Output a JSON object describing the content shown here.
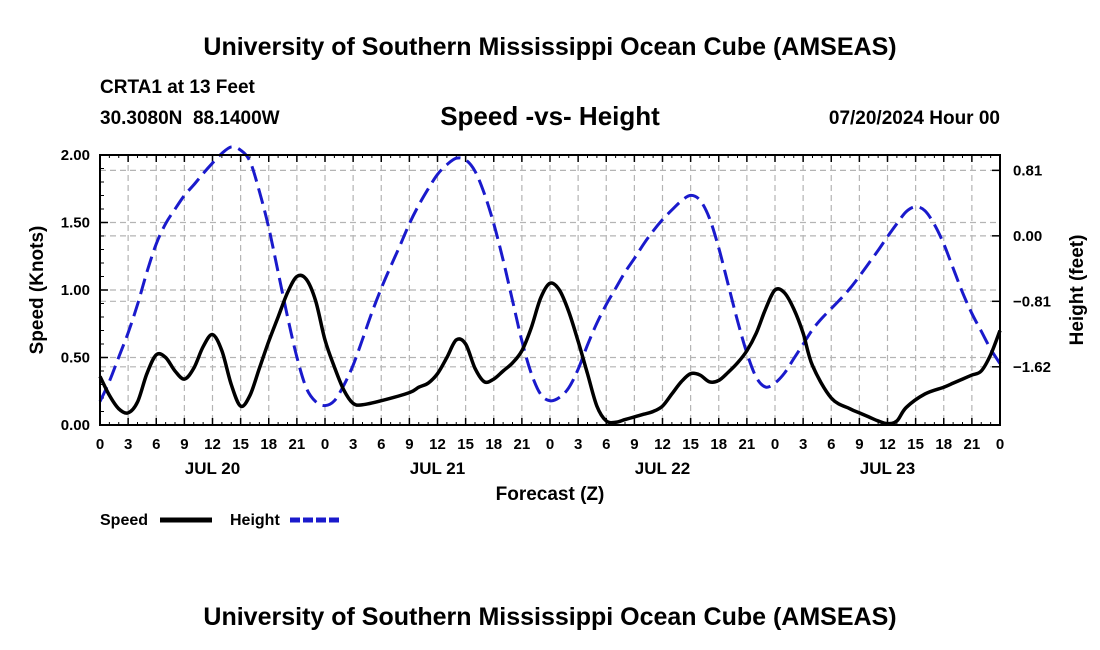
{
  "header": {
    "title": "University of Southern Mississippi Ocean Cube (AMSEAS)",
    "station": "CRTA1 at 13 Feet",
    "coords": "30.3080N  88.1400W",
    "datetime": "07/20/2024 Hour 00"
  },
  "footer": {
    "title": "University of Southern Mississippi Ocean Cube (AMSEAS)"
  },
  "colors": {
    "speed": "#000000",
    "height": "#1a1acc",
    "grid": "#b4b4b4"
  },
  "chart_data": {
    "type": "line",
    "title": "Speed -vs- Height",
    "xlabel": "Forecast (Z)",
    "ylabel": "Speed (Knots)",
    "y2label": "Height (feet)",
    "xlim": [
      0,
      96
    ],
    "ylim": [
      0,
      2.0
    ],
    "y2lim": [
      -2.34,
      1.0
    ],
    "x_ticks": [
      0,
      3,
      6,
      9,
      12,
      15,
      18,
      21,
      24,
      27,
      30,
      33,
      36,
      39,
      42,
      45,
      48,
      51,
      54,
      57,
      60,
      63,
      66,
      69,
      72,
      75,
      78,
      81,
      84,
      87,
      90,
      93,
      96
    ],
    "x_tick_labels": [
      "0",
      "3",
      "6",
      "9",
      "12",
      "15",
      "18",
      "21",
      "0",
      "3",
      "6",
      "9",
      "12",
      "15",
      "18",
      "21",
      "0",
      "3",
      "6",
      "9",
      "12",
      "15",
      "18",
      "21",
      "0",
      "3",
      "6",
      "9",
      "12",
      "15",
      "18",
      "21",
      "0"
    ],
    "y_ticks": [
      0,
      0.5,
      1.0,
      1.5,
      2.0
    ],
    "y_tick_labels": [
      "0.00",
      "0.50",
      "1.00",
      "1.50",
      "2.00"
    ],
    "y2_ticks": [
      0.81,
      0.0,
      -0.81,
      -1.62
    ],
    "y2_tick_labels": [
      "0.81",
      "0.00",
      "−0.81",
      "−1.62"
    ],
    "date_labels": [
      {
        "x": 12,
        "text": "JUL 20"
      },
      {
        "x": 36,
        "text": "JUL 21"
      },
      {
        "x": 60,
        "text": "JUL 22"
      },
      {
        "x": 84,
        "text": "JUL 23"
      }
    ],
    "grid": true,
    "legend": [
      {
        "name": "Speed",
        "style": "solid"
      },
      {
        "name": "Height",
        "style": "dashed"
      }
    ],
    "series": [
      {
        "name": "Speed",
        "axis": "left",
        "x": [
          0,
          1,
          2,
          3,
          4,
          5,
          6,
          7,
          8,
          9,
          10,
          11,
          12,
          13,
          14,
          15,
          16,
          17,
          18,
          19,
          20,
          21,
          22,
          23,
          24,
          25,
          26,
          27,
          28,
          30,
          33,
          34,
          35,
          36,
          37,
          38,
          39,
          40,
          41,
          42,
          43,
          44,
          45,
          46,
          47,
          48,
          49,
          50,
          51,
          52,
          53,
          54,
          55,
          56,
          57,
          58,
          59,
          60,
          61,
          62,
          63,
          64,
          65,
          66,
          67,
          68,
          69,
          70,
          71,
          72,
          73,
          74,
          75,
          76,
          78,
          80,
          81,
          82,
          83,
          84,
          85,
          86,
          88,
          90,
          91,
          92,
          93,
          94,
          95,
          96
        ],
        "values": [
          0.36,
          0.22,
          0.12,
          0.09,
          0.17,
          0.38,
          0.52,
          0.5,
          0.4,
          0.34,
          0.42,
          0.58,
          0.67,
          0.55,
          0.3,
          0.14,
          0.22,
          0.42,
          0.62,
          0.8,
          0.98,
          1.1,
          1.08,
          0.92,
          0.63,
          0.43,
          0.26,
          0.16,
          0.15,
          0.18,
          0.24,
          0.28,
          0.31,
          0.38,
          0.5,
          0.63,
          0.6,
          0.42,
          0.32,
          0.34,
          0.4,
          0.46,
          0.55,
          0.72,
          0.94,
          1.05,
          1.0,
          0.84,
          0.62,
          0.38,
          0.14,
          0.03,
          0.02,
          0.04,
          0.06,
          0.08,
          0.1,
          0.14,
          0.23,
          0.32,
          0.38,
          0.37,
          0.32,
          0.33,
          0.39,
          0.46,
          0.55,
          0.68,
          0.86,
          1.0,
          0.98,
          0.86,
          0.68,
          0.44,
          0.2,
          0.12,
          0.09,
          0.06,
          0.03,
          0.01,
          0.03,
          0.13,
          0.23,
          0.28,
          0.31,
          0.34,
          0.37,
          0.4,
          0.52,
          0.7
        ]
      },
      {
        "name": "Height",
        "axis": "right",
        "x": [
          0,
          1,
          2,
          3,
          4,
          5,
          6,
          7,
          8,
          9,
          10,
          11,
          12,
          13,
          14,
          15,
          16,
          17,
          18,
          19,
          20,
          21,
          22,
          23,
          24,
          25,
          26,
          27,
          28,
          29,
          30,
          31,
          32,
          33,
          34,
          35,
          36,
          37,
          38,
          39,
          40,
          41,
          42,
          43,
          44,
          45,
          46,
          47,
          48,
          49,
          50,
          51,
          52,
          53,
          54,
          55,
          56,
          57,
          58,
          59,
          60,
          61,
          62,
          63,
          64,
          65,
          66,
          67,
          68,
          69,
          70,
          71,
          72,
          73,
          74,
          75,
          76,
          77,
          78,
          79,
          80,
          81,
          82,
          83,
          84,
          85,
          86,
          87,
          88,
          89,
          90,
          91,
          92,
          93,
          94,
          95,
          96
        ],
        "values": [
          -2.05,
          -1.8,
          -1.5,
          -1.2,
          -0.85,
          -0.45,
          -0.1,
          0.15,
          0.33,
          0.5,
          0.63,
          0.77,
          0.9,
          1.02,
          1.1,
          1.06,
          0.92,
          0.55,
          0.1,
          -0.45,
          -1.0,
          -1.5,
          -1.88,
          -2.05,
          -2.1,
          -2.04,
          -1.85,
          -1.6,
          -1.28,
          -0.95,
          -0.65,
          -0.38,
          -0.12,
          0.15,
          0.38,
          0.58,
          0.76,
          0.88,
          0.96,
          0.94,
          0.8,
          0.52,
          0.15,
          -0.3,
          -0.8,
          -1.3,
          -1.7,
          -1.96,
          -2.04,
          -2.0,
          -1.88,
          -1.65,
          -1.35,
          -1.08,
          -0.85,
          -0.65,
          -0.45,
          -0.28,
          -0.1,
          0.06,
          0.2,
          0.32,
          0.43,
          0.5,
          0.44,
          0.22,
          -0.15,
          -0.6,
          -1.05,
          -1.45,
          -1.75,
          -1.87,
          -1.82,
          -1.7,
          -1.52,
          -1.34,
          -1.16,
          -1.02,
          -0.9,
          -0.78,
          -0.65,
          -0.5,
          -0.34,
          -0.18,
          -0.01,
          0.15,
          0.3,
          0.36,
          0.31,
          0.14,
          -0.1,
          -0.4,
          -0.7,
          -0.96,
          -1.18,
          -1.4,
          -1.58
        ]
      }
    ]
  }
}
